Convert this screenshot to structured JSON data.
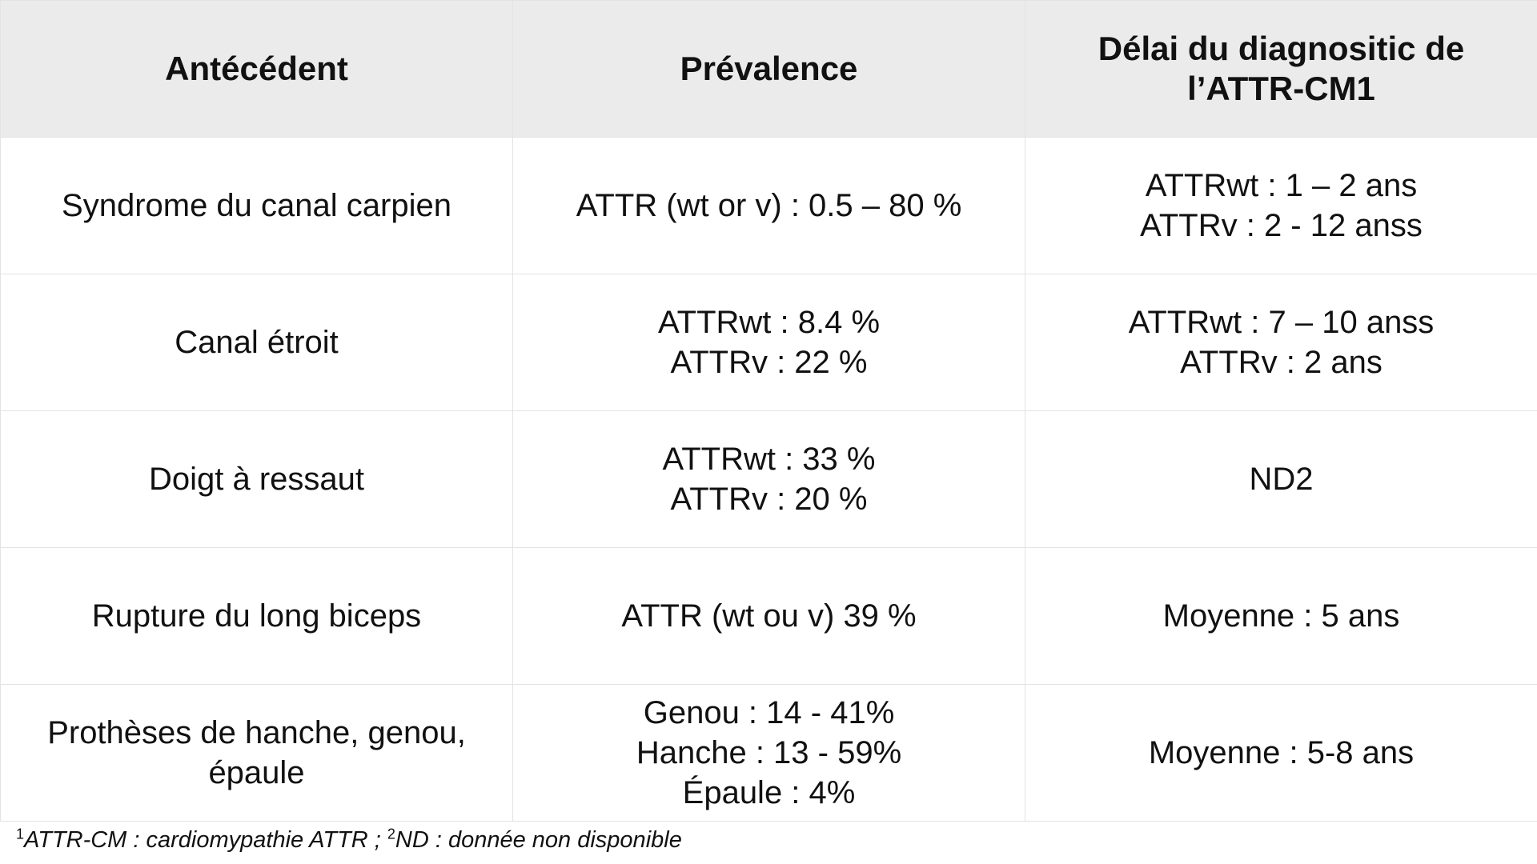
{
  "table": {
    "headers": [
      [
        "Antécédent"
      ],
      [
        "Prévalence"
      ],
      [
        "Délai du diagnositic de",
        "l’ATTR-CM1"
      ]
    ],
    "rows": [
      {
        "antecedent": [
          "Syndrome du canal carpien"
        ],
        "prevalence": [
          "ATTR (wt or v) : 0.5 – 80 %"
        ],
        "delai": [
          "ATTRwt : 1 – 2 ans",
          "ATTRv : 2 - 12 anss"
        ]
      },
      {
        "antecedent": [
          "Canal étroit"
        ],
        "prevalence": [
          "ATTRwt : 8.4 %",
          "ATTRv : 22 %"
        ],
        "delai": [
          "ATTRwt : 7 – 10 anss",
          "ATTRv : 2 ans"
        ]
      },
      {
        "antecedent": [
          "Doigt à ressaut"
        ],
        "prevalence": [
          "ATTRwt : 33 %",
          "ATTRv : 20 %"
        ],
        "delai": [
          "ND2"
        ]
      },
      {
        "antecedent": [
          "Rupture du long biceps"
        ],
        "prevalence": [
          "ATTR (wt ou v) 39 %"
        ],
        "delai": [
          "Moyenne : 5 ans"
        ]
      },
      {
        "antecedent": [
          "Prothèses de hanche, genou, épaule"
        ],
        "prevalence": [
          "Genou : 14 - 41%",
          "Hanche : 13 - 59%",
          "Épaule : 4%"
        ],
        "delai": [
          "Moyenne : 5-8 ans"
        ]
      }
    ]
  },
  "footnote": {
    "sup1": "1",
    "text1": "ATTR-CM : cardiomypathie ATTR ; ",
    "sup2": "2",
    "text2": "ND : donnée non disponible"
  }
}
